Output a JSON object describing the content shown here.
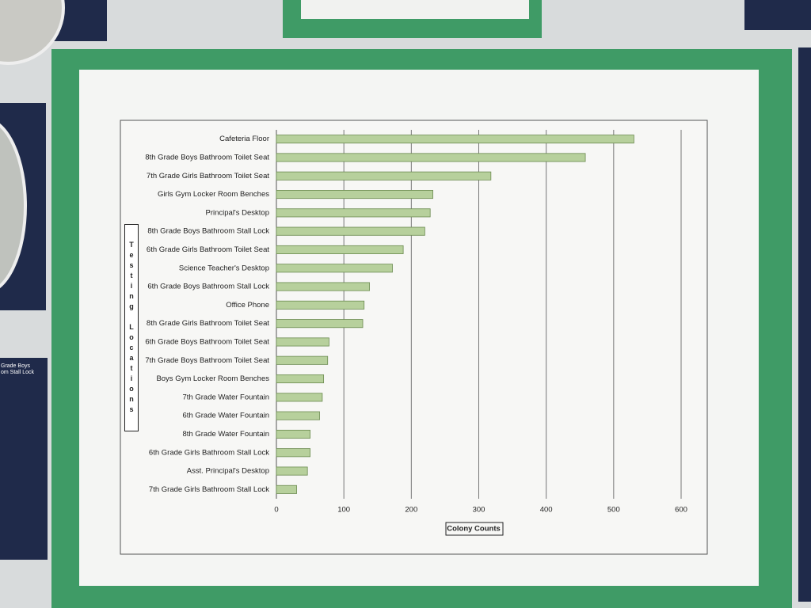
{
  "chart_data": {
    "type": "barh",
    "xlabel": "Colony Counts",
    "ylabel": "Testing Locations",
    "categories": [
      "Cafeteria Floor",
      "8th Grade Boys Bathroom Toilet Seat",
      "7th Grade Girls Bathroom Toilet Seat",
      "Girls Gym Locker Room Benches",
      "Principal's Desktop",
      "8th Grade Boys Bathroom Stall Lock",
      "6th Grade Girls Bathroom Toilet Seat",
      "Science Teacher's Desktop",
      "6th Grade Boys Bathroom Stall Lock",
      "Office Phone",
      "8th Grade Girls Bathroom Toilet Seat",
      "6th Grade Boys Bathroom Toilet Seat",
      "7th Grade Boys Bathroom Toilet Seat",
      "Boys Gym Locker Room Benches",
      "7th Grade Water Fountain",
      "6th Grade Water Fountain",
      "8th Grade Water Fountain",
      "6th Grade Girls Bathroom Stall Lock",
      "Asst. Principal's Desktop",
      "7th Grade Girls Bathroom Stall Lock"
    ],
    "values": [
      530,
      458,
      318,
      232,
      228,
      220,
      188,
      172,
      138,
      130,
      128,
      78,
      76,
      70,
      68,
      64,
      50,
      50,
      46,
      30
    ],
    "color": "#b7d09c",
    "xlim": [
      0,
      600
    ],
    "xticks": [
      0,
      100,
      200,
      300,
      400,
      500,
      600
    ],
    "grid": true
  },
  "background_label": [
    "Grade Boys",
    "om Stall Lock"
  ]
}
